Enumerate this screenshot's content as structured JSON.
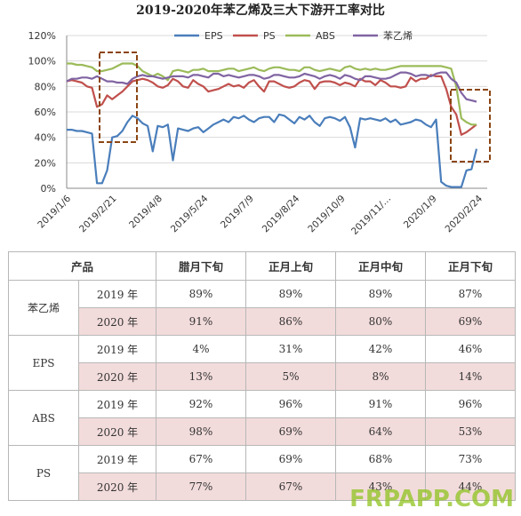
{
  "chart_data": {
    "type": "line",
    "title": "2019-2020年苯乙烯及三大下游开工率对比",
    "x_tick_labels": [
      "2019/1/6",
      "2019/2/21",
      "2019/4/8",
      "2019/5/24",
      "2019/7/9",
      "2019/8/24",
      "2019/10/9",
      "2019/11/…",
      "2020/1/9",
      "2020/2/24"
    ],
    "y_tick_labels": [
      "0%",
      "20%",
      "40%",
      "60%",
      "80%",
      "100%",
      "120%"
    ],
    "ylim": [
      0,
      120
    ],
    "legend_position": "top",
    "series": [
      {
        "name": "EPS",
        "color": "#4a7ebb",
        "values": [
          46,
          46,
          45,
          45,
          44,
          43,
          4,
          4,
          14,
          40,
          41,
          45,
          52,
          57,
          55,
          51,
          49,
          29,
          49,
          48,
          50,
          22,
          47,
          46,
          45,
          47,
          48,
          44,
          47,
          50,
          52,
          54,
          52,
          56,
          55,
          57,
          54,
          52,
          55,
          56,
          56,
          52,
          58,
          57,
          54,
          51,
          56,
          54,
          57,
          52,
          49,
          55,
          56,
          55,
          53,
          56,
          48,
          32,
          55,
          54,
          55,
          54,
          53,
          55,
          52,
          54,
          50,
          51,
          52,
          54,
          53,
          50,
          48,
          54,
          5,
          2,
          1,
          1,
          1,
          14,
          15,
          31
        ]
      },
      {
        "name": "PS",
        "color": "#c0504d",
        "values": [
          84,
          85,
          84,
          83,
          80,
          79,
          64,
          66,
          73,
          70,
          73,
          76,
          80,
          84,
          85,
          86,
          85,
          83,
          80,
          79,
          81,
          86,
          84,
          80,
          79,
          85,
          82,
          80,
          76,
          77,
          78,
          80,
          82,
          80,
          81,
          79,
          83,
          85,
          80,
          76,
          84,
          84,
          82,
          80,
          79,
          80,
          83,
          85,
          84,
          78,
          83,
          84,
          84,
          83,
          81,
          83,
          82,
          80,
          86,
          84,
          84,
          81,
          85,
          83,
          80,
          80,
          79,
          80,
          87,
          84,
          86,
          86,
          89,
          88,
          88,
          78,
          64,
          58,
          42,
          44,
          47,
          50
        ]
      },
      {
        "name": "ABS",
        "color": "#9bbb59",
        "values": [
          98,
          98,
          97,
          97,
          96,
          95,
          92,
          92,
          93,
          94,
          96,
          98,
          98,
          98,
          96,
          92,
          90,
          88,
          90,
          88,
          85,
          92,
          93,
          92,
          91,
          93,
          93,
          94,
          92,
          92,
          92,
          93,
          94,
          94,
          92,
          93,
          94,
          95,
          93,
          92,
          94,
          95,
          95,
          94,
          93,
          93,
          92,
          95,
          95,
          93,
          92,
          93,
          94,
          93,
          92,
          95,
          96,
          94,
          93,
          94,
          93,
          94,
          93,
          93,
          94,
          95,
          96,
          96,
          96,
          96,
          96,
          96,
          96,
          96,
          96,
          95,
          94,
          80,
          55,
          52,
          50,
          50
        ]
      },
      {
        "name": "苯乙烯",
        "color": "#8064a2",
        "values": [
          84,
          86,
          86,
          87,
          87,
          86,
          88,
          86,
          84,
          84,
          83,
          83,
          82,
          86,
          88,
          89,
          88,
          88,
          87,
          86,
          87,
          88,
          88,
          88,
          87,
          89,
          89,
          88,
          87,
          90,
          90,
          88,
          89,
          88,
          87,
          88,
          89,
          89,
          88,
          86,
          87,
          89,
          89,
          88,
          87,
          87,
          88,
          90,
          89,
          88,
          86,
          88,
          89,
          88,
          86,
          89,
          88,
          86,
          85,
          88,
          88,
          87,
          86,
          86,
          87,
          89,
          91,
          91,
          90,
          88,
          89,
          89,
          88,
          90,
          91,
          91,
          86,
          83,
          75,
          70,
          69,
          68
        ]
      }
    ]
  },
  "table": {
    "headers": {
      "product": "产品",
      "c1": "腊月下旬",
      "c2": "正月上旬",
      "c3": "正月中旬",
      "c4": "正月下旬"
    },
    "groups": [
      {
        "product": "苯乙烯",
        "rows": [
          {
            "year": "2019 年",
            "vals": [
              "89%",
              "89%",
              "89%",
              "87%"
            ]
          },
          {
            "year": "2020 年",
            "vals": [
              "91%",
              "86%",
              "80%",
              "69%"
            ]
          }
        ]
      },
      {
        "product": "EPS",
        "rows": [
          {
            "year": "2019 年",
            "vals": [
              "4%",
              "31%",
              "42%",
              "46%"
            ]
          },
          {
            "year": "2020 年",
            "vals": [
              "13%",
              "5%",
              "8%",
              "14%"
            ]
          }
        ]
      },
      {
        "product": "ABS",
        "rows": [
          {
            "year": "2019 年",
            "vals": [
              "92%",
              "96%",
              "91%",
              "96%"
            ]
          },
          {
            "year": "2020 年",
            "vals": [
              "98%",
              "69%",
              "64%",
              "53%"
            ]
          }
        ]
      },
      {
        "product": "PS",
        "rows": [
          {
            "year": "2019 年",
            "vals": [
              "67%",
              "69%",
              "68%",
              "73%"
            ]
          },
          {
            "year": "2020 年",
            "vals": [
              "77%",
              "67%",
              "43%",
              "44%"
            ]
          }
        ]
      }
    ]
  },
  "watermark": "FRPAPP.COM",
  "colors": {
    "highlight_box": "#8b4513",
    "alt_row": "#f2dcdb",
    "grid": "#d9d9d9"
  }
}
